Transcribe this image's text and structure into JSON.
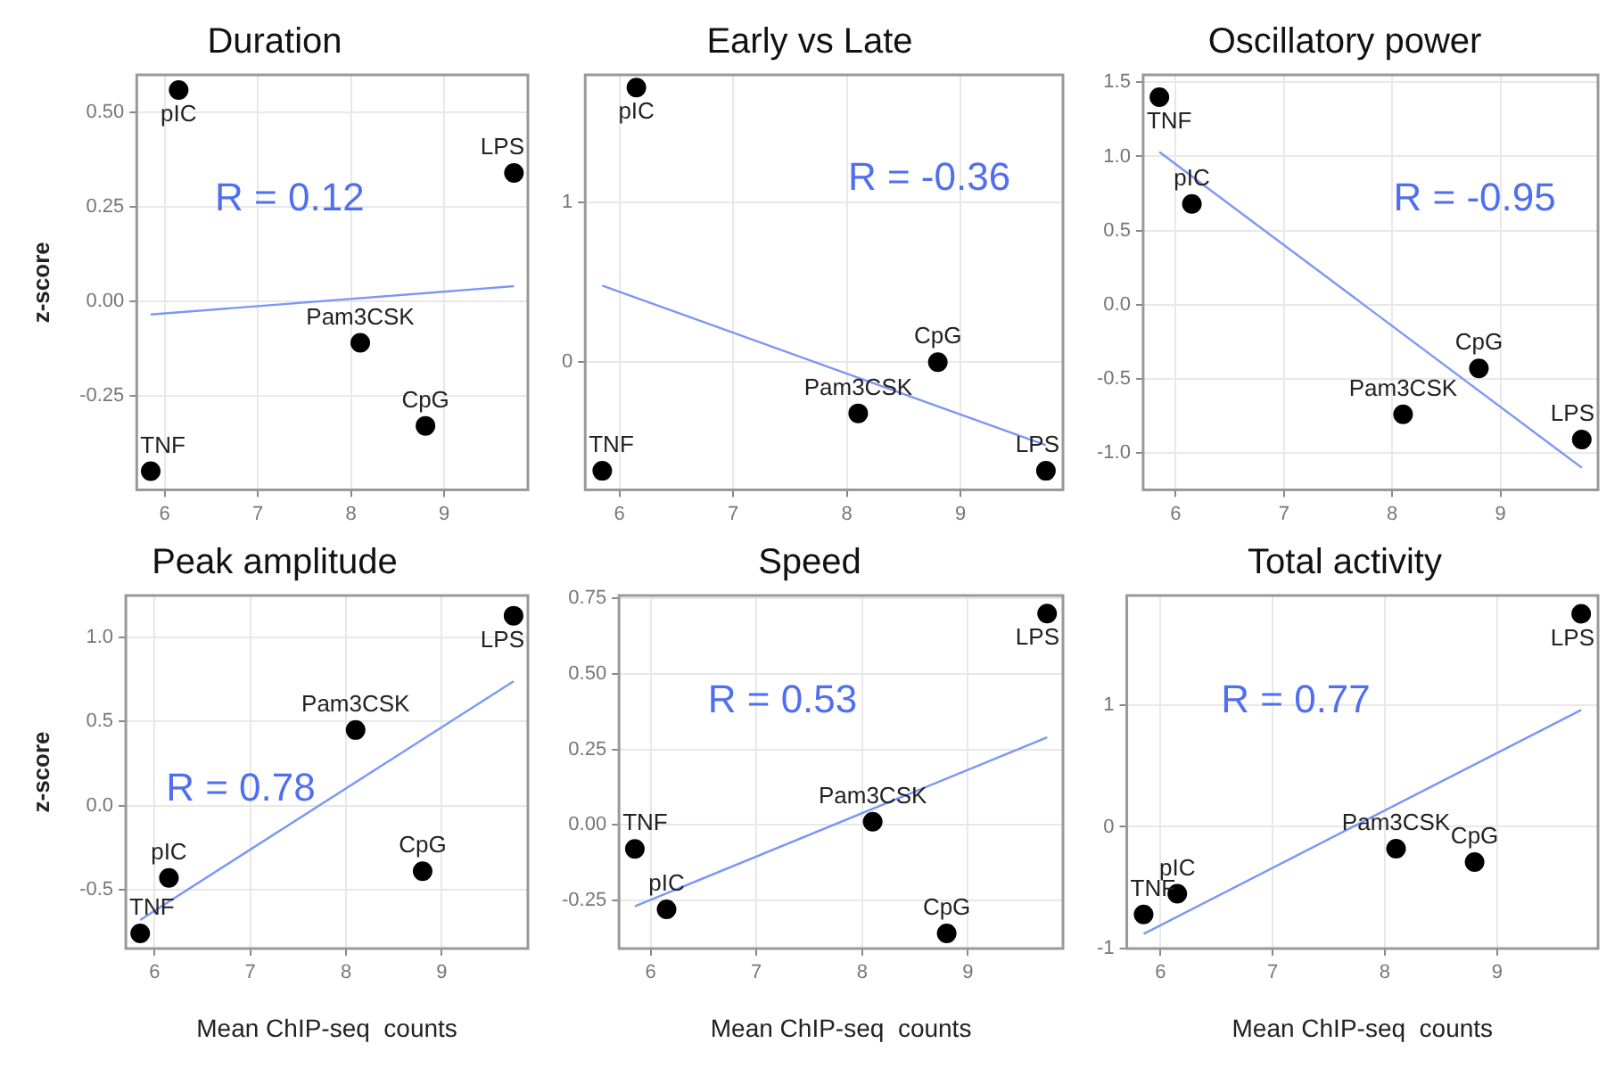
{
  "chart_data": [
    {
      "type": "scatter",
      "title": "Duration",
      "ylabel": "z-score",
      "xlim": [
        5.7,
        9.9
      ],
      "xticks": [
        6,
        7,
        8,
        9
      ],
      "ylim": [
        -0.5,
        0.6
      ],
      "yticks": [
        {
          "value": -0.25,
          "label": "-0.25"
        },
        {
          "value": 0,
          "label": "0.00"
        },
        {
          "value": 0.25,
          "label": "0.25"
        },
        {
          "value": 0.5,
          "label": "0.50"
        }
      ],
      "grid": true,
      "legend": false,
      "marker": "circle",
      "series": [
        {
          "color": "#000000",
          "x": [
            5.85,
            6.15,
            8.1,
            8.8,
            9.75
          ],
          "values": [
            -0.45,
            0.56,
            -0.11,
            -0.33,
            0.34
          ]
        },
        {
          "type": "line",
          "color": "#7b96f7",
          "marker": "none",
          "x": [
            5.85,
            9.75
          ],
          "values": [
            -0.035,
            0.04
          ]
        }
      ],
      "annotations": [
        "R = 0.12",
        {
          "text": "TNF",
          "x": 5.85,
          "y": -0.45
        },
        {
          "text": "pIC",
          "x": 6.15,
          "y": 0.56
        },
        {
          "text": "Pam3CSK",
          "x": 8.1,
          "y": -0.11
        },
        {
          "text": "CpG",
          "x": 8.8,
          "y": -0.33
        },
        {
          "text": "LPS",
          "x": 9.75,
          "y": 0.34
        }
      ]
    },
    {
      "type": "scatter",
      "title": "Early vs Late",
      "xlim": [
        5.7,
        9.9
      ],
      "xticks": [
        6,
        7,
        8,
        9
      ],
      "ylim": [
        -0.8,
        1.8
      ],
      "yticks": [
        0,
        1
      ],
      "grid": true,
      "legend": false,
      "marker": "circle",
      "series": [
        {
          "color": "#000000",
          "x": [
            5.85,
            6.15,
            8.1,
            8.8,
            9.75
          ],
          "values": [
            -0.68,
            1.72,
            -0.32,
            0.0,
            -0.68
          ]
        },
        {
          "type": "line",
          "color": "#7b96f7",
          "marker": "none",
          "x": [
            5.85,
            9.75
          ],
          "values": [
            0.48,
            -0.52
          ]
        }
      ],
      "annotations": [
        "R = -0.36",
        {
          "text": "TNF",
          "x": 5.85,
          "y": -0.68
        },
        {
          "text": "pIC",
          "x": 6.15,
          "y": 1.72
        },
        {
          "text": "Pam3CSK",
          "x": 8.1,
          "y": -0.32
        },
        {
          "text": "CpG",
          "x": 8.8,
          "y": 0.0
        },
        {
          "text": "LPS",
          "x": 9.75,
          "y": -0.68
        }
      ]
    },
    {
      "type": "scatter",
      "title": "Oscillatory power",
      "xlim": [
        5.7,
        9.9
      ],
      "xticks": [
        6,
        7,
        8,
        9
      ],
      "ylim": [
        -1.25,
        1.55
      ],
      "yticks": [
        {
          "value": -1,
          "label": "-1.0"
        },
        {
          "value": -0.5,
          "label": "-0.5"
        },
        {
          "value": 0,
          "label": "0.0"
        },
        {
          "value": 0.5,
          "label": "0.5"
        },
        {
          "value": 1,
          "label": "1.0"
        },
        {
          "value": 1.5,
          "label": "1.5"
        }
      ],
      "grid": true,
      "legend": false,
      "marker": "circle",
      "series": [
        {
          "color": "#000000",
          "x": [
            5.85,
            6.15,
            8.1,
            8.8,
            9.75
          ],
          "values": [
            1.4,
            0.68,
            -0.74,
            -0.43,
            -0.91
          ]
        },
        {
          "type": "line",
          "color": "#7b96f7",
          "marker": "none",
          "x": [
            5.85,
            9.75
          ],
          "values": [
            1.03,
            -1.1
          ]
        }
      ],
      "annotations": [
        "R = -0.95",
        {
          "text": "TNF",
          "x": 5.85,
          "y": 1.4
        },
        {
          "text": "pIC",
          "x": 6.15,
          "y": 0.68
        },
        {
          "text": "Pam3CSK",
          "x": 8.1,
          "y": -0.74
        },
        {
          "text": "CpG",
          "x": 8.8,
          "y": -0.43
        },
        {
          "text": "LPS",
          "x": 9.75,
          "y": -0.91
        }
      ]
    },
    {
      "type": "scatter",
      "title": "Peak amplitude",
      "xlabel": "Mean ChIP-seq  counts",
      "ylabel": "z-score",
      "xlim": [
        5.7,
        9.9
      ],
      "xticks": [
        6,
        7,
        8,
        9
      ],
      "ylim": [
        -0.85,
        1.25
      ],
      "yticks": [
        {
          "value": -0.5,
          "label": "-0.5"
        },
        {
          "value": 0,
          "label": "0.0"
        },
        {
          "value": 0.5,
          "label": "0.5"
        },
        {
          "value": 1,
          "label": "1.0"
        }
      ],
      "grid": true,
      "legend": false,
      "marker": "circle",
      "series": [
        {
          "color": "#000000",
          "x": [
            5.85,
            6.15,
            8.1,
            8.8,
            9.75
          ],
          "values": [
            -0.76,
            -0.43,
            0.45,
            -0.39,
            1.13
          ]
        },
        {
          "type": "line",
          "color": "#7b96f7",
          "marker": "none",
          "x": [
            5.85,
            9.75
          ],
          "values": [
            -0.68,
            0.74
          ]
        }
      ],
      "annotations": [
        "R = 0.78",
        {
          "text": "TNF",
          "x": 5.85,
          "y": -0.76
        },
        {
          "text": "pIC",
          "x": 6.15,
          "y": -0.43
        },
        {
          "text": "Pam3CSK",
          "x": 8.1,
          "y": 0.45
        },
        {
          "text": "CpG",
          "x": 8.8,
          "y": -0.39
        },
        {
          "text": "LPS",
          "x": 9.75,
          "y": 1.13
        }
      ]
    },
    {
      "type": "scatter",
      "title": "Speed",
      "xlabel": "Mean ChIP-seq  counts",
      "xlim": [
        5.7,
        9.9
      ],
      "xticks": [
        6,
        7,
        8,
        9
      ],
      "ylim": [
        -0.41,
        0.76
      ],
      "yticks": [
        {
          "value": -0.25,
          "label": "-0.25"
        },
        {
          "value": 0,
          "label": "0.00"
        },
        {
          "value": 0.25,
          "label": "0.25"
        },
        {
          "value": 0.5,
          "label": "0.50"
        },
        {
          "value": 0.75,
          "label": "0.75"
        }
      ],
      "grid": true,
      "legend": false,
      "marker": "circle",
      "series": [
        {
          "color": "#000000",
          "x": [
            5.85,
            6.15,
            8.1,
            8.8,
            9.75
          ],
          "values": [
            -0.08,
            -0.28,
            0.01,
            -0.36,
            0.7
          ]
        },
        {
          "type": "line",
          "color": "#7b96f7",
          "marker": "none",
          "x": [
            5.85,
            9.75
          ],
          "values": [
            -0.27,
            0.29
          ]
        }
      ],
      "annotations": [
        "R = 0.53",
        {
          "text": "TNF",
          "x": 5.85,
          "y": -0.08
        },
        {
          "text": "pIC",
          "x": 6.15,
          "y": -0.28
        },
        {
          "text": "Pam3CSK",
          "x": 8.1,
          "y": 0.01
        },
        {
          "text": "CpG",
          "x": 8.8,
          "y": -0.36
        },
        {
          "text": "LPS",
          "x": 9.75,
          "y": 0.7
        }
      ]
    },
    {
      "type": "scatter",
      "title": "Total activity",
      "xlabel": "Mean ChIP-seq  counts",
      "xlim": [
        5.7,
        9.9
      ],
      "xticks": [
        6,
        7,
        8,
        9
      ],
      "ylim": [
        -1.0,
        1.9
      ],
      "yticks": [
        -1,
        0,
        1
      ],
      "grid": true,
      "legend": false,
      "marker": "circle",
      "series": [
        {
          "color": "#000000",
          "x": [
            5.85,
            6.15,
            8.1,
            8.8,
            9.75
          ],
          "values": [
            -0.72,
            -0.55,
            -0.18,
            -0.29,
            1.75
          ]
        },
        {
          "type": "line",
          "color": "#7b96f7",
          "marker": "none",
          "x": [
            5.85,
            9.75
          ],
          "values": [
            -0.88,
            0.96
          ]
        }
      ],
      "annotations": [
        "R = 0.77",
        {
          "text": "TNF",
          "x": 5.85,
          "y": -0.72
        },
        {
          "text": "pIC",
          "x": 6.15,
          "y": -0.55
        },
        {
          "text": "Pam3CSK",
          "x": 8.1,
          "y": -0.18
        },
        {
          "text": "CpG",
          "x": 8.8,
          "y": -0.29
        },
        {
          "text": "LPS",
          "x": 9.75,
          "y": 1.75
        }
      ]
    }
  ]
}
